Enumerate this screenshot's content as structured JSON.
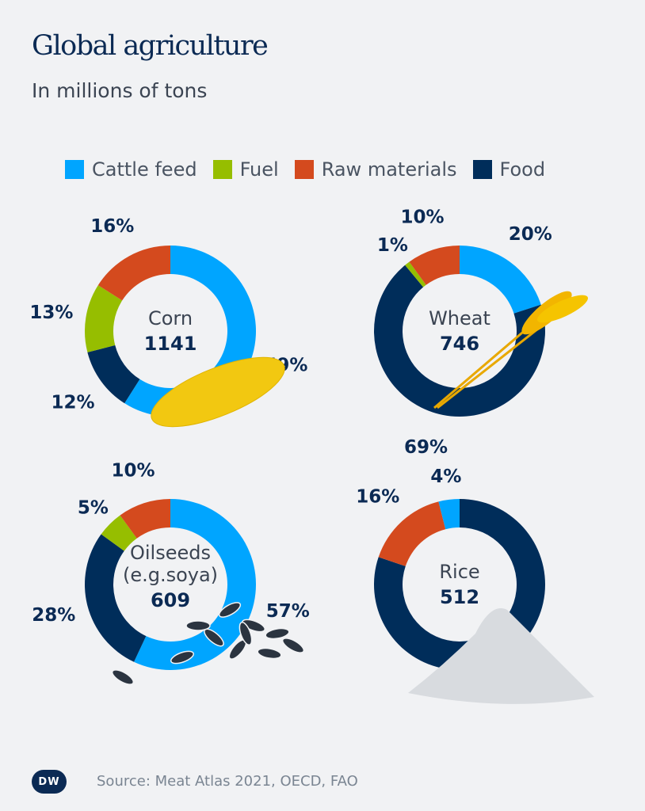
{
  "title": "Global agriculture",
  "subtitle": "In millions of tons",
  "source": "Source: Meat Atlas 2021, OECD, FAO",
  "logo": "DW",
  "colors": {
    "Cattle feed": "#00a5ff",
    "Fuel": "#96be00",
    "Raw materials": "#d44a1e",
    "Food": "#002d5a"
  },
  "legend": [
    "Cattle feed",
    "Fuel",
    "Raw materials",
    "Food"
  ],
  "chart_data": [
    {
      "type": "pie",
      "variant": "donut",
      "name": "Corn",
      "total": "1141",
      "segments": [
        {
          "category": "Cattle feed",
          "value": 59,
          "label": "59%"
        },
        {
          "category": "Food",
          "value": 12,
          "label": "12%"
        },
        {
          "category": "Fuel",
          "value": 13,
          "label": "13%"
        },
        {
          "category": "Raw materials",
          "value": 16,
          "label": "16%"
        }
      ]
    },
    {
      "type": "pie",
      "variant": "donut",
      "name": "Wheat",
      "total": "746",
      "segments": [
        {
          "category": "Cattle feed",
          "value": 20,
          "label": "20%"
        },
        {
          "category": "Food",
          "value": 69,
          "label": "69%"
        },
        {
          "category": "Fuel",
          "value": 1,
          "label": "1%"
        },
        {
          "category": "Raw materials",
          "value": 10,
          "label": "10%"
        }
      ]
    },
    {
      "type": "pie",
      "variant": "donut",
      "name": "Oilseeds (e.g.soya)",
      "name_lines": [
        "Oilseeds",
        "(e.g.soya)"
      ],
      "total": "609",
      "segments": [
        {
          "category": "Cattle feed",
          "value": 57,
          "label": "57%"
        },
        {
          "category": "Food",
          "value": 28,
          "label": "28%"
        },
        {
          "category": "Fuel",
          "value": 5,
          "label": "5%"
        },
        {
          "category": "Raw materials",
          "value": 10,
          "label": "10%"
        }
      ]
    },
    {
      "type": "pie",
      "variant": "donut",
      "name": "Rice",
      "total": "512",
      "segments": [
        {
          "category": "Food",
          "value": 81,
          "label": "81%"
        },
        {
          "category": "Raw materials",
          "value": 16,
          "label": "16%"
        },
        {
          "category": "Cattle feed",
          "value": 4,
          "label": "4%"
        }
      ]
    }
  ]
}
